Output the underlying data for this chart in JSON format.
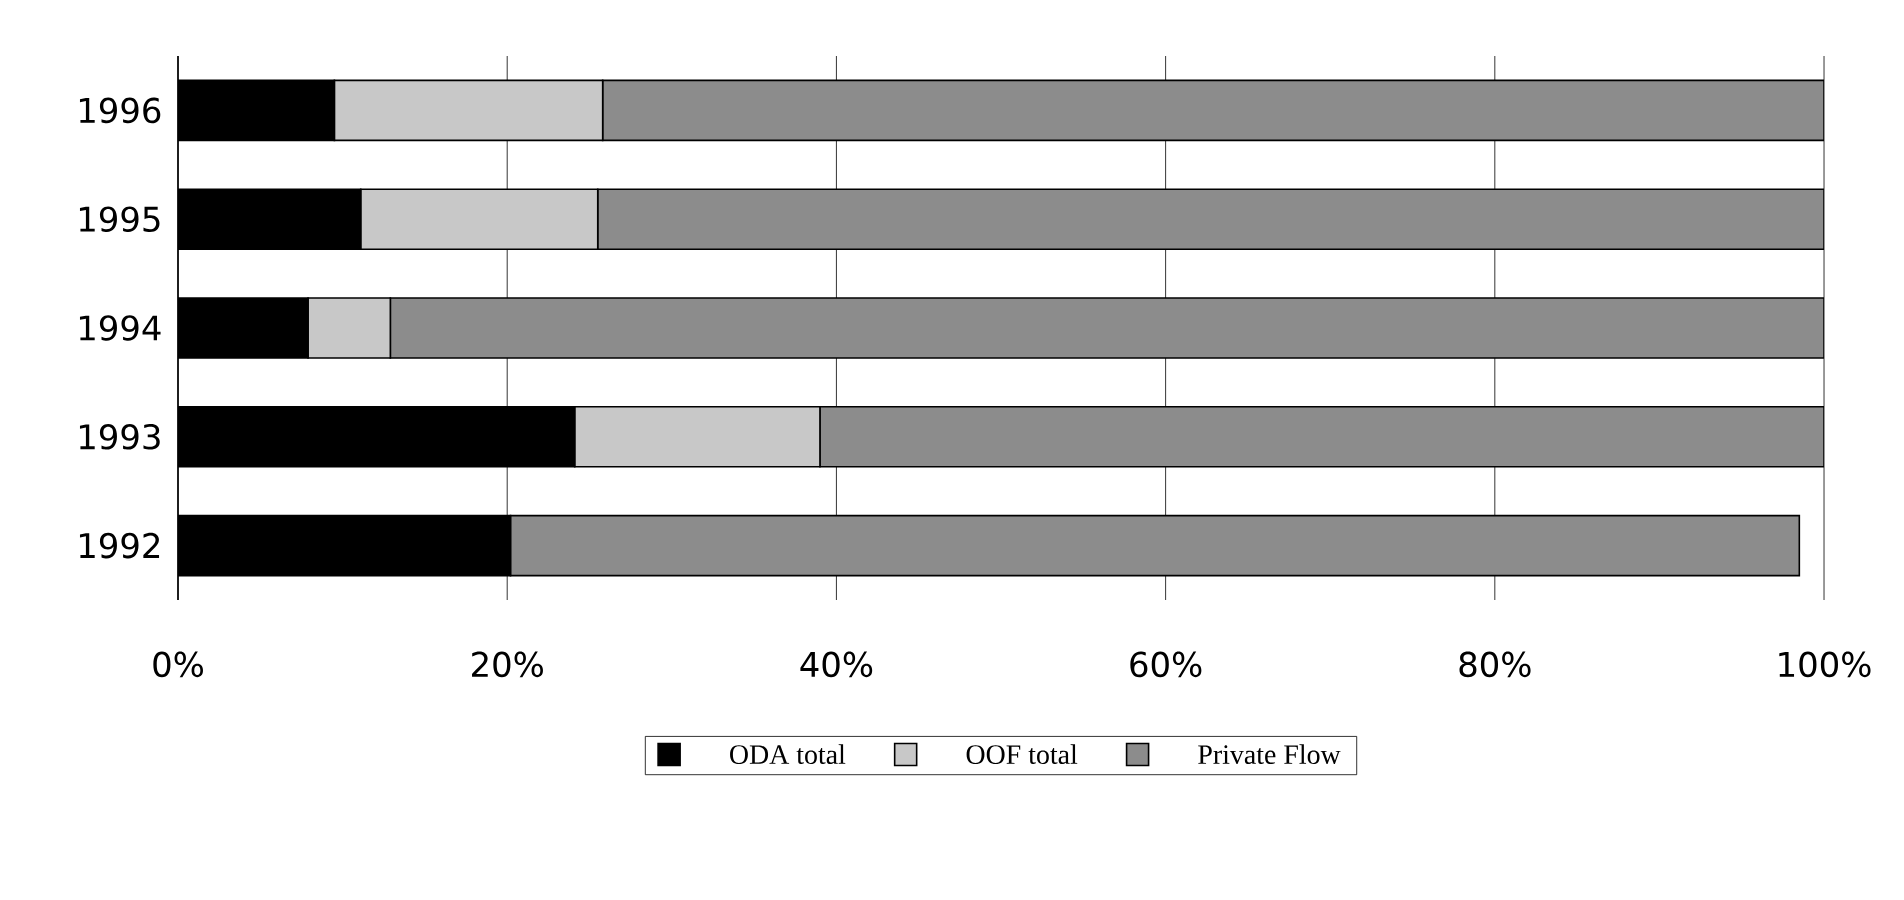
{
  "chart_data": {
    "type": "bar",
    "orientation": "horizontal",
    "stacked": true,
    "categories": [
      "1996",
      "1995",
      "1994",
      "1993",
      "1992"
    ],
    "series": [
      {
        "name": "ODA total",
        "color": "#000000",
        "values": [
          9.5,
          11.1,
          7.9,
          24.1,
          20.2
        ]
      },
      {
        "name": "OOF total",
        "color": "#c8c8c8",
        "values": [
          16.3,
          14.4,
          5.0,
          14.9,
          0
        ]
      },
      {
        "name": "Private Flow",
        "color": "#8c8c8c",
        "values": [
          74.2,
          74.5,
          87.1,
          61.0,
          78.3
        ]
      }
    ],
    "xlim": [
      0,
      100
    ],
    "xticks": [
      {
        "value": 0,
        "label": "0%"
      },
      {
        "value": 20,
        "label": "20%"
      },
      {
        "value": 40,
        "label": "40%"
      },
      {
        "value": 60,
        "label": "60%"
      },
      {
        "value": 80,
        "label": "80%"
      },
      {
        "value": 100,
        "label": "100%"
      }
    ],
    "grid": "x",
    "legend": "bottom"
  }
}
